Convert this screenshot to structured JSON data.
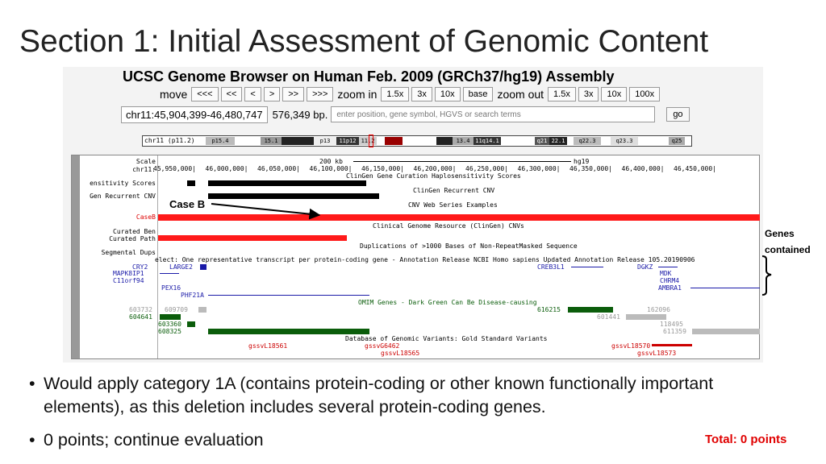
{
  "slide": {
    "title": "Section 1: Initial Assessment of Genomic Content"
  },
  "browser": {
    "title": "UCSC Genome Browser on Human Feb. 2009 (GRCh37/hg19) Assembly",
    "nav": {
      "move_label": "move",
      "move_buttons": [
        "<<<",
        "<<",
        "<",
        ">",
        ">>",
        ">>>"
      ],
      "zoom_in_label": "zoom in",
      "zoom_in_buttons": [
        "1.5x",
        "3x",
        "10x",
        "base"
      ],
      "zoom_out_label": "zoom out",
      "zoom_out_buttons": [
        "1.5x",
        "3x",
        "10x",
        "100x"
      ]
    },
    "position": "chr11:45,904,399-46,480,747",
    "size": "576,349 bp.",
    "search_placeholder": "enter position, gene symbol, HGVS or search terms",
    "go_label": "go",
    "ideogram": {
      "label": "chr11 (p11.2)",
      "bands": [
        "p15.4",
        "15.1",
        "p13",
        "11p12",
        "11.2",
        "13.4",
        "11q14.1",
        "q21",
        "22.1",
        "q22.3",
        "q23.3",
        "q25"
      ]
    },
    "tracks": {
      "scale_label": "Scale",
      "chr_label": "chr11:",
      "scale_text": "200 kb",
      "assembly": "hg19",
      "ruler": [
        "45,950,000|",
        "46,000,000|",
        "46,050,000|",
        "46,100,000|",
        "46,150,000|",
        "46,200,000|",
        "46,250,000|",
        "46,300,000|",
        "46,350,000|",
        "46,400,000|",
        "46,450,000|"
      ],
      "labels": {
        "sensitivity": "ensitivity Scores",
        "recurrent": "Gen Recurrent CNV",
        "caseb": "CaseB",
        "curated_ben": "Curated Ben",
        "curated_path": "Curated Path",
        "seg_dups": "Segmental Dups"
      },
      "titles": {
        "clingen_hap": "ClinGen Gene Curation Haplosensitivity Scores",
        "clingen_cnv": "ClinGen Recurrent CNV",
        "web_series": "CNV Web Series Examples",
        "clinical_resource": "Clinical Genome Resource (ClinGen) CNVs",
        "dups": "Duplications of >1000 Bases of Non-RepeatMasked Sequence",
        "refseq": "elect: One representative transcript per protein-coding gene - Annotation Release NCBI Homo sapiens Updated Annotation Release 105.20190906",
        "omim": "OMIM Genes - Dark Green Can Be Disease-causing",
        "dgv": "Database of Genomic Variants: Gold Standard Variants"
      },
      "genes": {
        "cry2": "CRY2",
        "large2": "LARGE2",
        "creb3l1": "CREB3L1",
        "dgkz": "DGKZ",
        "mapk8ip1": "MAPK8IP1",
        "mdk": "MDK",
        "c11orf94": "C11orf94",
        "chrm4": "CHRM4",
        "pex16": "PEX16",
        "ambra1": "AMBRA1",
        "phf21a": "PHF21A"
      },
      "omim_ids": {
        "o1": "603732",
        "o2": "609709",
        "o3": "604641",
        "o4": "603360",
        "o5": "608325",
        "o6": "616215",
        "o7": "162096",
        "o8": "601441",
        "o9": "118495",
        "o10": "611359"
      },
      "variants": {
        "v1": "gssvL18561",
        "v2": "gssvG6462",
        "v3": "gssvL18565",
        "v4": "gssvL18570",
        "v5": "gssvL18573"
      }
    }
  },
  "annotations": {
    "case_b": "Case B",
    "genes_line1": "Genes",
    "genes_line2": "contained"
  },
  "bullets": [
    "Would apply category 1A (contains protein-coding or other known functionally important elements), as this deletion includes several protein-coding genes.",
    "0 points; continue evaluation"
  ],
  "bullet_glyph": "•",
  "total": "Total: 0 points",
  "colors": {
    "caseb": "#ff1a1a",
    "omim_dark": "#0b5d0b",
    "refseq": "#1a1aa8",
    "variant": "#cc0000",
    "total": "#e00000"
  }
}
